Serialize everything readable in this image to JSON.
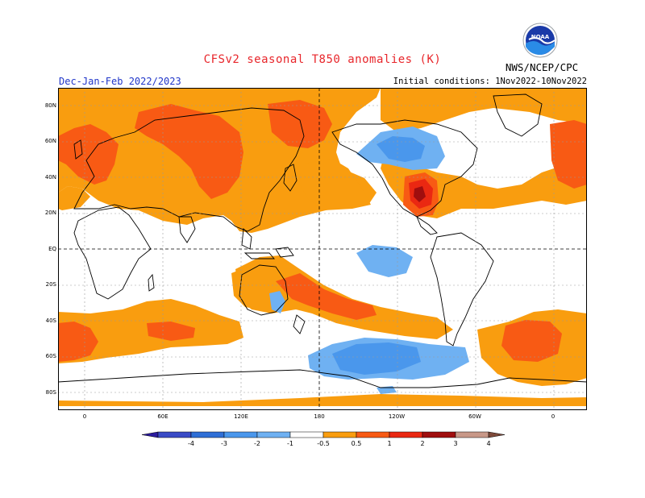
{
  "header": {
    "title": "CFSv2 seasonal T850 anomalies (K)",
    "organization": "NWS/NCEP/CPC",
    "season": "Dec-Jan-Feb 2022/2023",
    "initial_conditions": "Initial conditions: 1Nov2022-10Nov2022"
  },
  "logo": {
    "text": "NOAA",
    "icon": "noaa-logo-icon"
  },
  "map": {
    "projection": "cylindrical-equidistant",
    "center_longitude": 180,
    "lat_labels": [
      "80N",
      "60N",
      "40N",
      "20N",
      "EQ",
      "20S",
      "40S",
      "60S",
      "80S"
    ],
    "lon_labels": [
      "0",
      "60E",
      "120E",
      "180",
      "120W",
      "60W",
      "0"
    ],
    "grid": true,
    "dashed_reference_lines": [
      "EQ",
      "180"
    ]
  },
  "colorbar": {
    "labels": [
      "-4",
      "-3",
      "-2",
      "-1",
      "-0.5",
      "0.5",
      "1",
      "2",
      "3",
      "4"
    ],
    "colors": [
      "#2c1c9e",
      "#3a4bc6",
      "#2f6fd6",
      "#4a97ec",
      "#6fb1f2",
      "#ffffff",
      "#f99d0f",
      "#f85a14",
      "#ea2812",
      "#a00e0e",
      "#c89888",
      "#7e4a3a"
    ],
    "unit": "K"
  },
  "colors": {
    "ocean": "#ffffff",
    "warm_05": "#f99d0f",
    "warm_1": "#f85a14",
    "warm_2": "#ea2812",
    "warm_3": "#a00e0e",
    "cool_05": "#6fb1f2",
    "cool_1": "#4a97ec",
    "title": "#e8262b",
    "season": "#2036c9"
  }
}
